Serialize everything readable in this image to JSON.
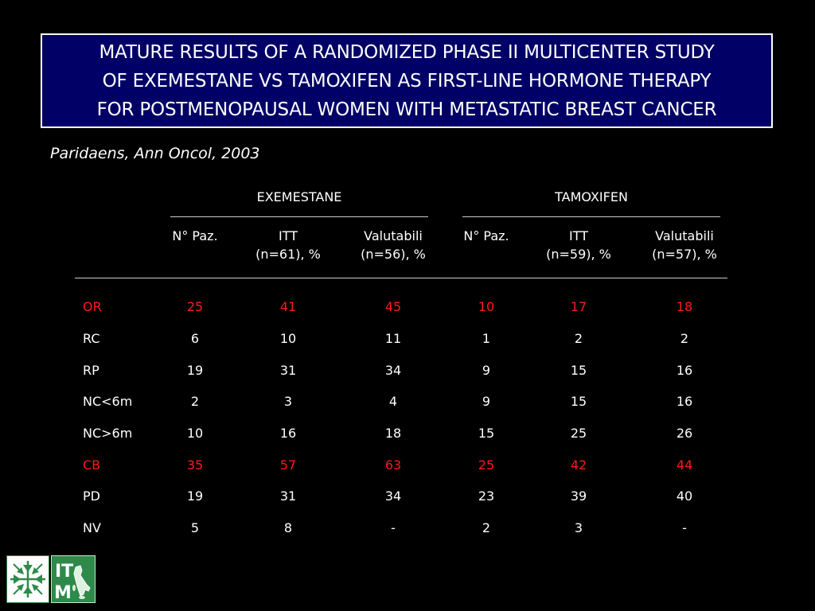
{
  "title": {
    "lines": [
      "MATURE RESULTS OF A RANDOMIZED PHASE II MULTICENTER STUDY",
      "OF EXEMESTANE VS TAMOXIFEN AS FIRST-LINE HORMONE THERAPY",
      "FOR POSTMENOPAUSAL WOMEN WITH METASTATIC BREAST CANCER"
    ]
  },
  "citation": "Paridaens, Ann Oncol, 2003",
  "colors": {
    "background": "#000000",
    "title_box": "#000066",
    "highlight": "#ff1a1a",
    "text": "#ffffff"
  },
  "table": {
    "groups": [
      "EXEMESTANE",
      "TAMOXIFEN"
    ],
    "columns": [
      {
        "line1": "N° Paz.",
        "line2": ""
      },
      {
        "line1": "ITT",
        "line2": "(n=61), %"
      },
      {
        "line1": "Valutabili",
        "line2": "(n=56), %"
      },
      {
        "line1": "N° Paz.",
        "line2": ""
      },
      {
        "line1": "ITT",
        "line2": "(n=59), %"
      },
      {
        "line1": "Valutabili",
        "line2": "(n=57), %"
      }
    ],
    "rows": [
      {
        "label": "OR",
        "values": [
          "25",
          "41",
          "45",
          "10",
          "17",
          "18"
        ],
        "highlight": true
      },
      {
        "label": "RC",
        "values": [
          "6",
          "10",
          "11",
          "1",
          "2",
          "2"
        ],
        "highlight": false
      },
      {
        "label": "RP",
        "values": [
          "19",
          "31",
          "34",
          "9",
          "15",
          "16"
        ],
        "highlight": false
      },
      {
        "label": "NC<6m",
        "values": [
          "2",
          "3",
          "4",
          "9",
          "15",
          "16"
        ],
        "highlight": false
      },
      {
        "label": "NC>6m",
        "values": [
          "10",
          "16",
          "18",
          "15",
          "25",
          "26"
        ],
        "highlight": false
      },
      {
        "label": "CB",
        "values": [
          "35",
          "57",
          "63",
          "25",
          "42",
          "44"
        ],
        "highlight": true
      },
      {
        "label": "PD",
        "values": [
          "19",
          "31",
          "34",
          "23",
          "39",
          "40"
        ],
        "highlight": false
      },
      {
        "label": "NV",
        "values": [
          "5",
          "8",
          "-",
          "2",
          "3",
          "-"
        ],
        "highlight": false
      }
    ]
  },
  "logos": {
    "left_icon": "arrows-converging-logo-icon",
    "right_text": "ITM",
    "right_icon": "italy-map-logo-icon"
  }
}
